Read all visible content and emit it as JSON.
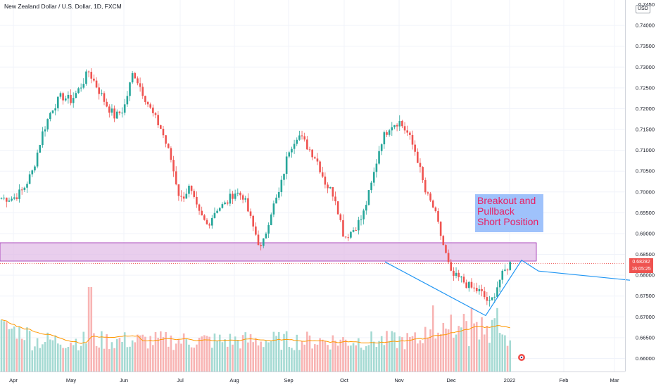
{
  "header": {
    "title": "New Zealand Dollar / U.S. Dollar, 1D, FXCM",
    "currency_badge": "USD"
  },
  "annotation": {
    "text": "Breakout and\nPullback\nShort Position"
  },
  "price_tag": {
    "price": "0.68282",
    "countdown": "16:05:25"
  },
  "colors": {
    "up": "#26a69a",
    "down": "#ef5350",
    "zone": "#e1bee7",
    "zone_border": "#9c27b0",
    "trendline": "#2196f3",
    "ma": "#ff9800",
    "note_bg": "#9fc2fb",
    "note_text": "#e91e63"
  },
  "chart_data": {
    "type": "candlestick",
    "symbol": "NZDUSD",
    "timeframe": "1D",
    "ylim": [
      0.657,
      0.75
    ],
    "y_ticks": [
      "0.74000",
      "0.73500",
      "0.73000",
      "0.72500",
      "0.72000",
      "0.71500",
      "0.71000",
      "0.70500",
      "0.70000",
      "0.69500",
      "0.69000",
      "0.68500",
      "0.68000",
      "0.67500",
      "0.67000",
      "0.66500",
      "0.66000"
    ],
    "x_ticks": [
      "Apr",
      "May",
      "Jun",
      "Jul",
      "Aug",
      "Sep",
      "Oct",
      "Nov",
      "Dec",
      "2022",
      "Feb",
      "Mar"
    ],
    "top_tick_partial": "0.7450",
    "last_price": 0.68282,
    "close_path": [
      [
        "Apr",
        0.6985
      ],
      [
        "Apr",
        0.7005
      ],
      [
        "Apr",
        0.705
      ],
      [
        "Apr",
        0.714
      ],
      [
        "Apr",
        0.72
      ],
      [
        "Apr",
        0.723
      ],
      [
        "May",
        0.722
      ],
      [
        "May",
        0.725
      ],
      [
        "May",
        0.729
      ],
      [
        "May",
        0.725
      ],
      [
        "May",
        0.721
      ],
      [
        "May",
        0.718
      ],
      [
        "Jun",
        0.72
      ],
      [
        "Jun",
        0.729
      ],
      [
        "Jun",
        0.724
      ],
      [
        "Jun",
        0.719
      ],
      [
        "Jun",
        0.715
      ],
      [
        "Jun",
        0.708
      ],
      [
        "Jul",
        0.698
      ],
      [
        "Jul",
        0.701
      ],
      [
        "Jul",
        0.695
      ],
      [
        "Jul",
        0.692
      ],
      [
        "Jul",
        0.696
      ],
      [
        "Jul",
        0.697
      ],
      [
        "Aug",
        0.7
      ],
      [
        "Aug",
        0.699
      ],
      [
        "Aug",
        0.692
      ],
      [
        "Aug",
        0.686
      ],
      [
        "Aug",
        0.695
      ],
      [
        "Aug",
        0.7
      ],
      [
        "Sep",
        0.71
      ],
      [
        "Sep",
        0.714
      ],
      [
        "Sep",
        0.711
      ],
      [
        "Sep",
        0.708
      ],
      [
        "Sep",
        0.702
      ],
      [
        "Sep",
        0.699
      ],
      [
        "Oct",
        0.689
      ],
      [
        "Oct",
        0.691
      ],
      [
        "Oct",
        0.694
      ],
      [
        "Oct",
        0.702
      ],
      [
        "Oct",
        0.712
      ],
      [
        "Oct",
        0.716
      ],
      [
        "Nov",
        0.717
      ],
      [
        "Nov",
        0.714
      ],
      [
        "Nov",
        0.709
      ],
      [
        "Nov",
        0.7
      ],
      [
        "Nov",
        0.696
      ],
      [
        "Nov",
        0.688
      ],
      [
        "Dec",
        0.68
      ],
      [
        "Dec",
        0.679
      ],
      [
        "Dec",
        0.677
      ],
      [
        "Dec",
        0.676
      ],
      [
        "Dec",
        0.673
      ],
      [
        "Dec",
        0.679
      ],
      [
        "2022",
        0.6828
      ]
    ],
    "support_resistance_zone": [
      0.6834,
      0.6878
    ],
    "trendline_points": [
      [
        "Nov",
        0.6832
      ],
      [
        "Dec",
        0.6703
      ],
      [
        "2022",
        0.6836
      ],
      [
        "Feb",
        0.681
      ],
      [
        "Mar",
        0.6788
      ]
    ],
    "volume": {
      "has_moving_average": true
    }
  }
}
